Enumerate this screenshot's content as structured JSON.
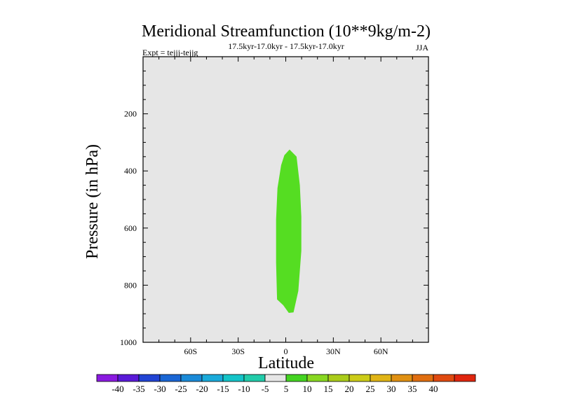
{
  "chart_data": {
    "type": "contour",
    "title": "Meridional Streamfunction (10**9kg/m-2)",
    "subtitle_left": "Expt = tejjj-tejjg",
    "subtitle_center": "17.5kyr-17.0kyr - 17.5kyr-17.0kyr",
    "subtitle_right": "JJA",
    "xlabel": "Latitude",
    "ylabel": "Pressure (in hPa)",
    "xlim": [
      -90,
      90
    ],
    "ylim": [
      1000,
      0
    ],
    "x_ticks": [
      {
        "value": -60,
        "label": "60S"
      },
      {
        "value": -30,
        "label": "30S"
      },
      {
        "value": 0,
        "label": "0"
      },
      {
        "value": 30,
        "label": "30N"
      },
      {
        "value": 60,
        "label": "60N"
      }
    ],
    "y_ticks": [
      {
        "value": 200,
        "label": "200"
      },
      {
        "value": 400,
        "label": "400"
      },
      {
        "value": 600,
        "label": "600"
      },
      {
        "value": 800,
        "label": "800"
      },
      {
        "value": 1000,
        "label": "1000"
      }
    ],
    "background_color": "#e6e6e6",
    "filled_regions": [
      {
        "level_range": "5 to 10",
        "color": "#55dd22",
        "polygon": [
          [
            2.4,
            325
          ],
          [
            6.8,
            350
          ],
          [
            8.9,
            450
          ],
          [
            9.8,
            560
          ],
          [
            9.8,
            680
          ],
          [
            7.9,
            820
          ],
          [
            4.9,
            895
          ],
          [
            1.9,
            897
          ],
          [
            -1.6,
            870
          ],
          [
            -5.5,
            850
          ],
          [
            -6.1,
            720
          ],
          [
            -6.1,
            570
          ],
          [
            -5.2,
            460
          ],
          [
            -2.9,
            380
          ],
          [
            -0.9,
            345
          ]
        ]
      }
    ],
    "colorbar": {
      "colors": [
        "#8a1ae0",
        "#5a1ad8",
        "#2244d4",
        "#1a66d4",
        "#1a8ad8",
        "#1aaada",
        "#14c4c8",
        "#22ccaa",
        "#e6e6e6",
        "#44d422",
        "#88d822",
        "#aacc1a",
        "#cccc18",
        "#e0b416",
        "#e09012",
        "#e06e10",
        "#e04a10",
        "#e0260e"
      ],
      "labels": [
        "-40",
        "-35",
        "-30",
        "-25",
        "-20",
        "-15",
        "-10",
        "-5",
        "5",
        "10",
        "15",
        "20",
        "25",
        "30",
        "35",
        "40"
      ]
    }
  }
}
